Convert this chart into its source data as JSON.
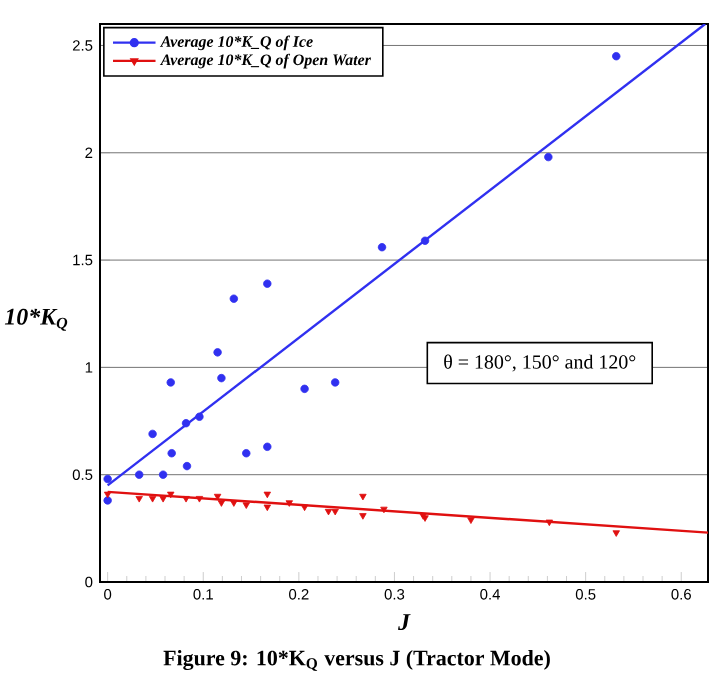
{
  "chart_data": {
    "type": "scatter",
    "xlabel": "J",
    "ylabel": "10*K$_{Q}$",
    "xlim": [
      -0.008,
      0.628
    ],
    "ylim": [
      0,
      2.6
    ],
    "xticks": [
      0,
      0.1,
      0.2,
      0.3,
      0.4,
      0.5,
      0.6
    ],
    "yticks": [
      0,
      0.5,
      1,
      1.5,
      2,
      2.5
    ],
    "grid": "y",
    "legend": "top left",
    "annotations": [
      "θ = 180°, 150° and 120°",
      "Figure 9: 10*K$_{Q}$ versus J (Tractor Mode)"
    ],
    "series": [
      {
        "name": "Average 10*K_Q of Ice",
        "marker": "circle",
        "color": "#3030f0",
        "x": [
          0,
          0,
          0.033,
          0.047,
          0.066,
          0.067,
          0.058,
          0.082,
          0.083,
          0.096,
          0.115,
          0.119,
          0.132,
          0.145,
          0.167,
          0.167,
          0.206,
          0.238,
          0.287,
          0.332,
          0.461,
          0.532
        ],
        "values": [
          0.48,
          0.38,
          0.5,
          0.69,
          0.93,
          0.6,
          0.5,
          0.74,
          0.54,
          0.77,
          1.07,
          0.95,
          1.32,
          0.6,
          1.39,
          0.63,
          0.9,
          0.93,
          1.56,
          1.59,
          1.98,
          2.45
        ]
      },
      {
        "type": "line",
        "color": "#3030f0",
        "x": [
          0,
          0.625
        ],
        "values": [
          0.45,
          2.6
        ]
      },
      {
        "name": "Average 10*K_Q of Open Water",
        "marker": "triangle",
        "color": "#e01010",
        "x": [
          0,
          0.033,
          0.047,
          0.058,
          0.066,
          0.082,
          0.096,
          0.115,
          0.119,
          0.132,
          0.145,
          0.167,
          0.167,
          0.19,
          0.206,
          0.231,
          0.238,
          0.267,
          0.267,
          0.289,
          0.33,
          0.332,
          0.38,
          0.462,
          0.532
        ],
        "values": [
          0.41,
          0.39,
          0.39,
          0.39,
          0.41,
          0.39,
          0.39,
          0.4,
          0.37,
          0.37,
          0.36,
          0.41,
          0.35,
          0.37,
          0.35,
          0.33,
          0.33,
          0.4,
          0.31,
          0.34,
          0.31,
          0.3,
          0.29,
          0.28,
          0.23
        ]
      },
      {
        "type": "line",
        "color": "#e01010",
        "x": [
          0,
          0.628
        ],
        "values": [
          0.42,
          0.23
        ]
      }
    ]
  }
}
